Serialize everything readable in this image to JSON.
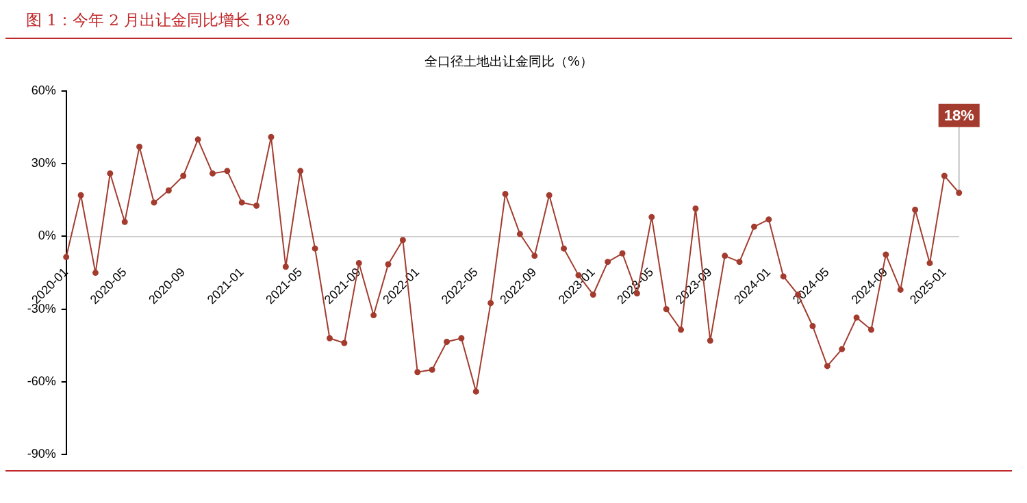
{
  "chart_data": {
    "type": "line",
    "title": "图 1：今年 2 月出让金同比增长 18%",
    "subtitle": "全口径土地出让金同比（%）",
    "categories": [
      "2020-01",
      null,
      null,
      null,
      "2020-05",
      null,
      null,
      null,
      "2020-09",
      null,
      null,
      null,
      "2021-01",
      null,
      null,
      null,
      "2021-05",
      null,
      null,
      null,
      "2021-09",
      null,
      null,
      null,
      "2022-01",
      null,
      null,
      null,
      "2022-05",
      null,
      null,
      null,
      "2022-09",
      null,
      null,
      null,
      "2023-01",
      null,
      null,
      null,
      "2023-05",
      null,
      null,
      null,
      "2023-09",
      null,
      null,
      null,
      "2024-01",
      null,
      null,
      null,
      "2024-05",
      null,
      null,
      null,
      "2024-09",
      null,
      null,
      null,
      "2025-01",
      null
    ],
    "series": [
      {
        "color": "#a33c2f",
        "values": [
          -8.5,
          17,
          -15,
          26,
          6,
          37,
          14,
          19,
          25,
          40,
          26,
          27,
          14,
          12.7,
          41,
          -12.5,
          27,
          -5,
          -42,
          -44,
          -11,
          -32.5,
          -11.5,
          -1.5,
          -56,
          -55,
          -43.5,
          -42,
          -64,
          -27.5,
          17.5,
          1,
          -8,
          17,
          -5,
          -16,
          -24,
          -10.5,
          -7,
          -23.5,
          8,
          -30,
          -38.5,
          11.5,
          -43,
          -8,
          -10.5,
          4,
          7,
          -16.5,
          -24,
          -37,
          -53.5,
          -46.5,
          -33.5,
          -38.5,
          -7.5,
          -22,
          11,
          -11,
          25,
          18
        ],
        "value_labels": [
          null,
          null,
          null,
          null,
          null,
          null,
          null,
          null,
          null,
          null,
          null,
          null,
          null,
          null,
          null,
          null,
          null,
          null,
          null,
          null,
          null,
          null,
          null,
          null,
          null,
          null,
          null,
          null,
          null,
          null,
          null,
          null,
          null,
          null,
          null,
          null,
          null,
          null,
          null,
          null,
          null,
          null,
          null,
          null,
          null,
          null,
          null,
          null,
          null,
          null,
          null,
          null,
          null,
          null,
          null,
          null,
          null,
          null,
          null,
          null,
          null,
          "18%"
        ]
      }
    ],
    "ylim": [
      -90,
      60
    ],
    "yticks": [
      {
        "value": -90,
        "label": "-90%"
      },
      {
        "value": -60,
        "label": "-60%"
      },
      {
        "value": -30,
        "label": "-30%"
      },
      {
        "value": 0,
        "label": "0%"
      },
      {
        "value": 30,
        "label": "30%"
      },
      {
        "value": 60,
        "label": "60%"
      }
    ],
    "grid": false,
    "legend": false,
    "marker": "circle",
    "line_style": "solid"
  }
}
